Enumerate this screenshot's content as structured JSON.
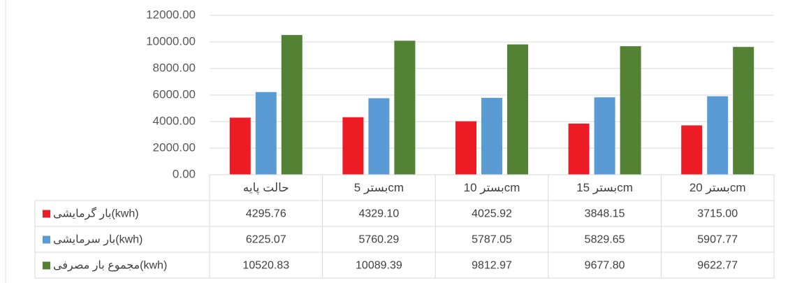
{
  "chart_data": {
    "type": "bar",
    "categories": [
      "حالت پایه",
      "بستر 5cm",
      "بستر 10cm",
      "بستر 15cm",
      "بستر 20cm"
    ],
    "series": [
      {
        "name": "بار گرمایشی(kwh)",
        "color": "#ed1c24",
        "values": [
          4295.76,
          4329.1,
          4025.92,
          3848.15,
          3715.0
        ],
        "value_labels": [
          "4295.76",
          "4329.10",
          "4025.92",
          "3848.15",
          "3715.00"
        ]
      },
      {
        "name": "بار سرمایشی(kwh)",
        "color": "#5b9bd5",
        "values": [
          6225.07,
          5760.29,
          5787.05,
          5829.65,
          5907.77
        ],
        "value_labels": [
          "6225.07",
          "5760.29",
          "5787.05",
          "5829.65",
          "5907.77"
        ]
      },
      {
        "name": "مجموع بار مصرفی(kwh)",
        "color": "#548235",
        "values": [
          10520.83,
          10089.39,
          9812.97,
          9677.8,
          9622.77
        ],
        "value_labels": [
          "10520.83",
          "10089.39",
          "9812.97",
          "9677.80",
          "9622.77"
        ]
      }
    ],
    "ylim": [
      0,
      12000
    ],
    "yticks": [
      {
        "value": 0,
        "label": "0.00"
      },
      {
        "value": 2000,
        "label": "2000.00"
      },
      {
        "value": 4000,
        "label": "4000.00"
      },
      {
        "value": 6000,
        "label": "6000.00"
      },
      {
        "value": 8000,
        "label": "8000.00"
      },
      {
        "value": 10000,
        "label": "10000.00"
      },
      {
        "value": 12000,
        "label": "12000.00"
      }
    ],
    "grid": true
  }
}
